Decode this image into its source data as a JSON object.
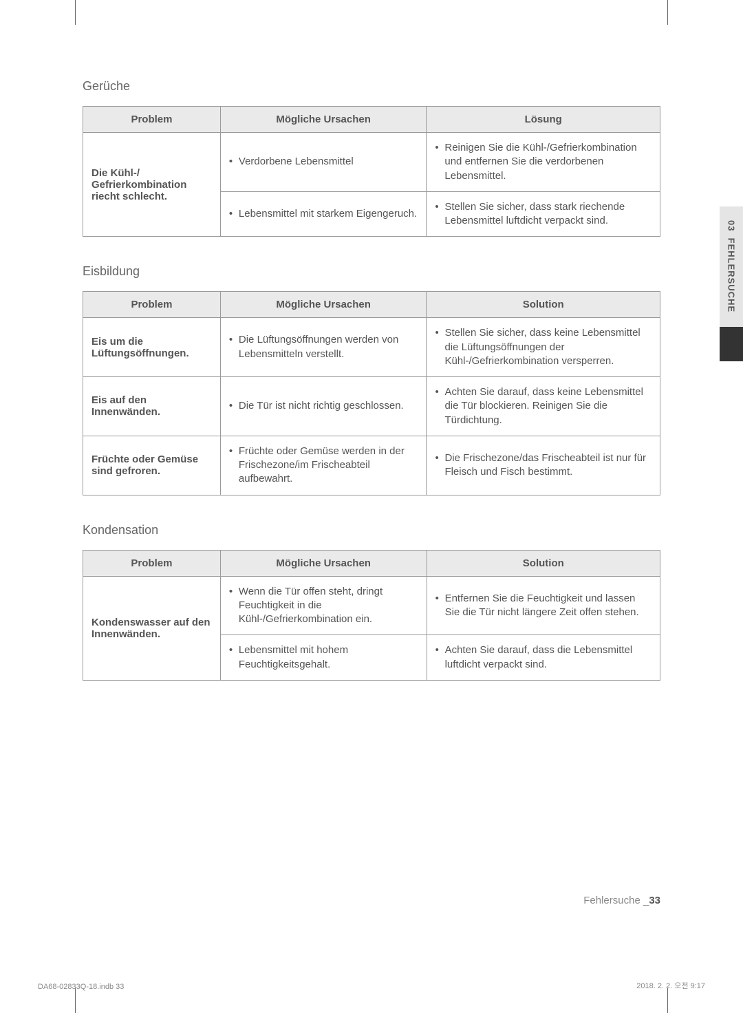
{
  "sidebar": {
    "label": "03  FEHLERSUCHE",
    "tab_top_bg": "#e5e5e5",
    "tab_bottom_bg": "#333333"
  },
  "sections": [
    {
      "title": "Gerüche",
      "headers": [
        "Problem",
        "Mögliche Ursachen",
        "Lösung"
      ],
      "rows": [
        {
          "problem": "Die Kühl-/\nGefrierkombination riecht schlecht.",
          "rowspan": 2,
          "cause": "Verdorbene Lebensmittel",
          "solution": "Reinigen Sie die Kühl-/Gefrierkombination und entfernen Sie die verdorbenen Lebensmittel."
        },
        {
          "problem": null,
          "cause": "Lebensmittel mit starkem Eigengeruch.",
          "solution": "Stellen Sie sicher, dass stark riechende Lebensmittel luftdicht verpackt sind."
        }
      ]
    },
    {
      "title": "Eisbildung",
      "headers": [
        "Problem",
        "Mögliche Ursachen",
        "Solution"
      ],
      "rows": [
        {
          "problem": "Eis um die Lüftungsöffnungen.",
          "rowspan": 1,
          "cause": "Die Lüftungsöffnungen werden von Lebensmitteln verstellt.",
          "solution": "Stellen Sie sicher, dass keine Lebensmittel die Lüftungsöffnungen der Kühl-/Gefrierkombination versperren."
        },
        {
          "problem": "Eis auf den Innenwänden.",
          "rowspan": 1,
          "cause": "Die Tür ist nicht richtig geschlossen.",
          "solution": "Achten Sie darauf, dass keine Lebensmittel die Tür blockieren. Reinigen Sie die Türdichtung."
        },
        {
          "problem": "Früchte oder Gemüse sind gefroren.",
          "rowspan": 1,
          "cause": "Früchte oder Gemüse werden in der Frischezone/im Frischeabteil aufbewahrt.",
          "solution": "Die Frischezone/das Frischeabteil ist nur für Fleisch und Fisch bestimmt."
        }
      ]
    },
    {
      "title": "Kondensation",
      "headers": [
        "Problem",
        "Mögliche Ursachen",
        "Solution"
      ],
      "rows": [
        {
          "problem": "Kondenswasser auf den Innenwänden.",
          "rowspan": 2,
          "cause": "Wenn die Tür offen steht, dringt Feuchtigkeit in die Kühl-/Gefrierkombination ein.",
          "solution": "Entfernen Sie die Feuchtigkeit und lassen Sie die Tür nicht längere Zeit offen stehen."
        },
        {
          "problem": null,
          "cause": "Lebensmittel mit hohem Feuchtigkeitsgehalt.",
          "solution": "Achten Sie darauf, dass die Lebensmittel luftdicht verpackt sind."
        }
      ]
    }
  ],
  "footer": {
    "section_name": "Fehlersuche",
    "page_number": "33",
    "doc_ref": "DA68-02833Q-18.indb   33",
    "timestamp": "2018. 2. 2.   오전 9:17"
  }
}
